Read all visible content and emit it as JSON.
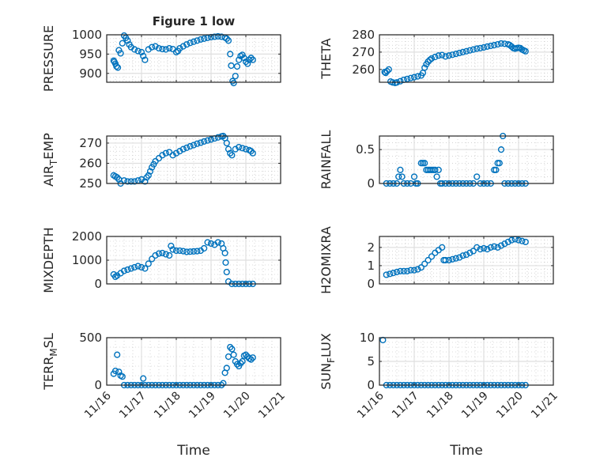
{
  "title": "Figure 1 low",
  "xlabel": "Time",
  "x_ticks": [
    16,
    17,
    18,
    19,
    20,
    21
  ],
  "x_tick_labels": [
    "11/16",
    "11/17",
    "11/18",
    "11/19",
    "11/20",
    "11/21"
  ],
  "colors": {
    "marker": "#0072BD",
    "axis": "#262626",
    "grid": "#dfdfdf"
  },
  "chart_data": [
    {
      "type": "scatter",
      "ylabel": "PRESSURE",
      "ylim": [
        877,
        1000
      ],
      "yticks": [
        900,
        950,
        1000
      ],
      "xlim": [
        16,
        21
      ],
      "x": [
        16.2,
        16.22,
        16.25,
        16.28,
        16.32,
        16.35,
        16.4,
        16.45,
        16.5,
        16.55,
        16.6,
        16.65,
        16.7,
        16.8,
        16.9,
        17.0,
        17.05,
        17.1,
        17.2,
        17.3,
        17.4,
        17.5,
        17.6,
        17.7,
        17.8,
        17.9,
        18.0,
        18.05,
        18.1,
        18.2,
        18.3,
        18.4,
        18.5,
        18.6,
        18.7,
        18.8,
        18.9,
        19.0,
        19.1,
        19.2,
        19.3,
        19.4,
        19.45,
        19.5,
        19.55,
        19.58,
        19.62,
        19.65,
        19.7,
        19.75,
        19.8,
        19.85,
        19.9,
        19.95,
        20.0,
        20.05,
        20.1,
        20.15,
        20.2
      ],
      "y": [
        933,
        930,
        925,
        918,
        915,
        960,
        952,
        978,
        998,
        992,
        985,
        975,
        968,
        962,
        958,
        955,
        945,
        935,
        962,
        968,
        970,
        965,
        963,
        962,
        965,
        963,
        955,
        958,
        965,
        970,
        975,
        979,
        982,
        985,
        988,
        990,
        992,
        994,
        995,
        996,
        995,
        993,
        990,
        985,
        950,
        920,
        880,
        875,
        893,
        918,
        935,
        945,
        948,
        940,
        930,
        925,
        935,
        940,
        935
      ]
    },
    {
      "type": "scatter",
      "ylabel": "THETA",
      "ylim": [
        252.6,
        280
      ],
      "yticks": [
        260,
        270,
        280
      ],
      "xlim": [
        16,
        21
      ],
      "x": [
        16.15,
        16.18,
        16.22,
        16.27,
        16.32,
        16.38,
        16.45,
        16.5,
        16.6,
        16.7,
        16.8,
        16.9,
        17.0,
        17.1,
        17.2,
        17.25,
        17.3,
        17.35,
        17.4,
        17.45,
        17.5,
        17.6,
        17.7,
        17.8,
        17.9,
        18.0,
        18.1,
        18.2,
        18.3,
        18.4,
        18.5,
        18.6,
        18.7,
        18.8,
        18.9,
        19.0,
        19.1,
        19.2,
        19.3,
        19.4,
        19.5,
        19.6,
        19.7,
        19.75,
        19.8,
        19.85,
        19.9,
        19.95,
        20.0,
        20.05,
        20.1,
        20.15,
        20.2
      ],
      "y": [
        258.5,
        258,
        259,
        260,
        253,
        252.5,
        252.2,
        252.5,
        253.2,
        254,
        254.5,
        255,
        255.5,
        256,
        256.5,
        258,
        261,
        263,
        264.5,
        265.5,
        266.3,
        267.2,
        268,
        268.3,
        267.5,
        268,
        268.5,
        269,
        269.5,
        270,
        270.5,
        271,
        271.5,
        272,
        272.3,
        272.7,
        273.2,
        273.6,
        274,
        274.5,
        275,
        274.8,
        274.5,
        274,
        273.2,
        272.3,
        272,
        272.3,
        272.5,
        272.3,
        271.5,
        271,
        270.5
      ]
    },
    {
      "type": "scatter",
      "ylabel": "AIR_TEMP",
      "ylim": [
        250,
        273.5
      ],
      "yticks": [
        250,
        260,
        270
      ],
      "xlim": [
        16,
        21
      ],
      "x": [
        16.2,
        16.25,
        16.3,
        16.35,
        16.4,
        16.5,
        16.6,
        16.7,
        16.8,
        16.9,
        17.0,
        17.1,
        17.15,
        17.2,
        17.25,
        17.3,
        17.35,
        17.4,
        17.5,
        17.6,
        17.7,
        17.8,
        17.9,
        18.0,
        18.1,
        18.2,
        18.3,
        18.4,
        18.5,
        18.6,
        18.7,
        18.8,
        18.9,
        19.0,
        19.1,
        19.2,
        19.3,
        19.35,
        19.4,
        19.45,
        19.5,
        19.55,
        19.6,
        19.7,
        19.8,
        19.9,
        20.0,
        20.1,
        20.15,
        20.2
      ],
      "y": [
        254,
        253.5,
        253,
        252,
        250,
        251.5,
        251,
        251,
        251,
        251.5,
        252,
        251,
        253,
        254,
        256,
        258,
        259.5,
        261,
        262.5,
        264,
        265,
        265.5,
        264,
        265,
        266,
        267,
        267.7,
        268.4,
        269,
        269.7,
        270.2,
        270.8,
        271.3,
        271.8,
        272.3,
        272.8,
        273.3,
        273.5,
        272.5,
        270,
        267,
        265,
        264,
        267,
        268,
        267.5,
        267,
        266.5,
        266,
        265
      ]
    },
    {
      "type": "scatter",
      "ylabel": "RAINFALL",
      "ylim": [
        0,
        0.7
      ],
      "yticks": [
        0,
        0.5
      ],
      "xlim": [
        16,
        21
      ],
      "x": [
        16.2,
        16.3,
        16.4,
        16.5,
        16.55,
        16.6,
        16.65,
        16.7,
        16.8,
        16.9,
        17.0,
        17.05,
        17.1,
        17.2,
        17.25,
        17.3,
        17.35,
        17.4,
        17.45,
        17.5,
        17.55,
        17.6,
        17.65,
        17.7,
        17.75,
        17.8,
        17.9,
        18.0,
        18.1,
        18.2,
        18.3,
        18.4,
        18.5,
        18.6,
        18.7,
        18.8,
        18.9,
        19.0,
        19.1,
        19.2,
        19.3,
        19.35,
        19.4,
        19.45,
        19.5,
        19.55,
        19.6,
        19.7,
        19.8,
        19.9,
        20.0,
        20.1,
        20.2
      ],
      "y": [
        0,
        0,
        0,
        0,
        0.1,
        0.2,
        0.1,
        0,
        0,
        0,
        0.1,
        0,
        0,
        0.3,
        0.3,
        0.3,
        0.2,
        0.2,
        0.2,
        0.2,
        0.2,
        0.2,
        0.1,
        0.2,
        0,
        0,
        0,
        0,
        0,
        0,
        0,
        0,
        0,
        0,
        0,
        0.1,
        0,
        0,
        0,
        0,
        0.2,
        0.2,
        0.3,
        0.3,
        0.5,
        0.7,
        0,
        0,
        0,
        0,
        0,
        0,
        0
      ]
    },
    {
      "type": "scatter",
      "ylabel": "MIXDEPTH",
      "ylim": [
        0,
        2000
      ],
      "yticks": [
        0,
        1000,
        2000
      ],
      "xlim": [
        16,
        21
      ],
      "x": [
        16.2,
        16.25,
        16.3,
        16.4,
        16.5,
        16.6,
        16.7,
        16.8,
        16.9,
        17.0,
        17.1,
        17.2,
        17.3,
        17.4,
        17.5,
        17.6,
        17.7,
        17.8,
        17.85,
        17.9,
        18.0,
        18.1,
        18.2,
        18.3,
        18.4,
        18.5,
        18.6,
        18.7,
        18.8,
        18.9,
        19.0,
        19.1,
        19.2,
        19.3,
        19.35,
        19.4,
        19.42,
        19.45,
        19.5,
        19.6,
        19.7,
        19.8,
        19.9,
        20.0,
        20.1,
        20.2
      ],
      "y": [
        400,
        300,
        350,
        450,
        550,
        600,
        650,
        700,
        750,
        700,
        650,
        850,
        1050,
        1200,
        1280,
        1300,
        1250,
        1200,
        1600,
        1450,
        1400,
        1400,
        1380,
        1350,
        1360,
        1370,
        1380,
        1400,
        1500,
        1750,
        1700,
        1650,
        1750,
        1700,
        1500,
        1300,
        900,
        500,
        100,
        0,
        0,
        0,
        0,
        0,
        0,
        0
      ]
    },
    {
      "type": "scatter",
      "ylabel": "H2OMIXRA",
      "ylim": [
        0,
        2.6
      ],
      "yticks": [
        0,
        1,
        2
      ],
      "xlim": [
        16,
        21
      ],
      "x": [
        16.2,
        16.3,
        16.4,
        16.5,
        16.6,
        16.7,
        16.8,
        16.9,
        17.0,
        17.1,
        17.2,
        17.3,
        17.4,
        17.5,
        17.6,
        17.7,
        17.8,
        17.85,
        17.9,
        18.0,
        18.1,
        18.2,
        18.3,
        18.4,
        18.5,
        18.6,
        18.7,
        18.8,
        18.9,
        19.0,
        19.1,
        19.2,
        19.3,
        19.4,
        19.5,
        19.6,
        19.7,
        19.8,
        19.9,
        20.0,
        20.1,
        20.2
      ],
      "y": [
        0.5,
        0.55,
        0.6,
        0.65,
        0.7,
        0.7,
        0.7,
        0.75,
        0.75,
        0.8,
        0.9,
        1.1,
        1.3,
        1.5,
        1.7,
        1.85,
        2.0,
        1.3,
        1.3,
        1.3,
        1.35,
        1.4,
        1.45,
        1.55,
        1.6,
        1.7,
        1.8,
        2.0,
        1.9,
        1.95,
        1.9,
        2.0,
        2.05,
        2.0,
        2.1,
        2.2,
        2.3,
        2.4,
        2.45,
        2.4,
        2.35,
        2.3
      ]
    },
    {
      "type": "scatter",
      "ylabel": "TERR_MSL",
      "ylim": [
        0,
        500
      ],
      "yticks": [
        0,
        500
      ],
      "xlim": [
        16,
        21
      ],
      "x": [
        16.2,
        16.25,
        16.3,
        16.35,
        16.4,
        16.45,
        16.5,
        16.6,
        16.7,
        16.8,
        16.9,
        17.0,
        17.05,
        17.1,
        17.2,
        17.3,
        17.4,
        17.5,
        17.6,
        17.7,
        17.8,
        17.9,
        18.0,
        18.1,
        18.2,
        18.3,
        18.4,
        18.5,
        18.6,
        18.7,
        18.8,
        18.9,
        19.0,
        19.1,
        19.2,
        19.3,
        19.35,
        19.4,
        19.45,
        19.5,
        19.55,
        19.6,
        19.65,
        19.7,
        19.75,
        19.8,
        19.85,
        19.9,
        19.95,
        20.0,
        20.05,
        20.1,
        20.15,
        20.2
      ],
      "y": [
        120,
        150,
        320,
        140,
        100,
        90,
        0,
        0,
        0,
        0,
        0,
        0,
        70,
        0,
        0,
        0,
        0,
        0,
        0,
        0,
        0,
        0,
        0,
        0,
        0,
        0,
        0,
        0,
        0,
        0,
        0,
        0,
        0,
        0,
        0,
        0,
        20,
        130,
        180,
        300,
        400,
        380,
        320,
        250,
        220,
        200,
        230,
        250,
        310,
        320,
        300,
        280,
        270,
        290
      ]
    },
    {
      "type": "scatter",
      "ylabel": "SUN_FLUX",
      "ylim": [
        0,
        10
      ],
      "yticks": [
        0,
        5,
        10
      ],
      "xlim": [
        16,
        21
      ],
      "x": [
        16.1,
        16.2,
        16.3,
        16.4,
        16.5,
        16.6,
        16.7,
        16.8,
        16.9,
        17.0,
        17.1,
        17.2,
        17.3,
        17.4,
        17.5,
        17.6,
        17.7,
        17.8,
        17.9,
        18.0,
        18.1,
        18.2,
        18.3,
        18.4,
        18.5,
        18.6,
        18.7,
        18.8,
        18.9,
        19.0,
        19.1,
        19.2,
        19.3,
        19.4,
        19.5,
        19.6,
        19.7,
        19.8,
        19.9,
        20.0,
        20.1,
        20.2
      ],
      "y": [
        9.5,
        0,
        0,
        0,
        0,
        0,
        0,
        0,
        0,
        0,
        0,
        0,
        0,
        0,
        0,
        0,
        0,
        0,
        0,
        0,
        0,
        0,
        0,
        0,
        0,
        0,
        0,
        0,
        0,
        0,
        0,
        0,
        0,
        0,
        0,
        0,
        0,
        0,
        0,
        0,
        0,
        0
      ]
    }
  ]
}
